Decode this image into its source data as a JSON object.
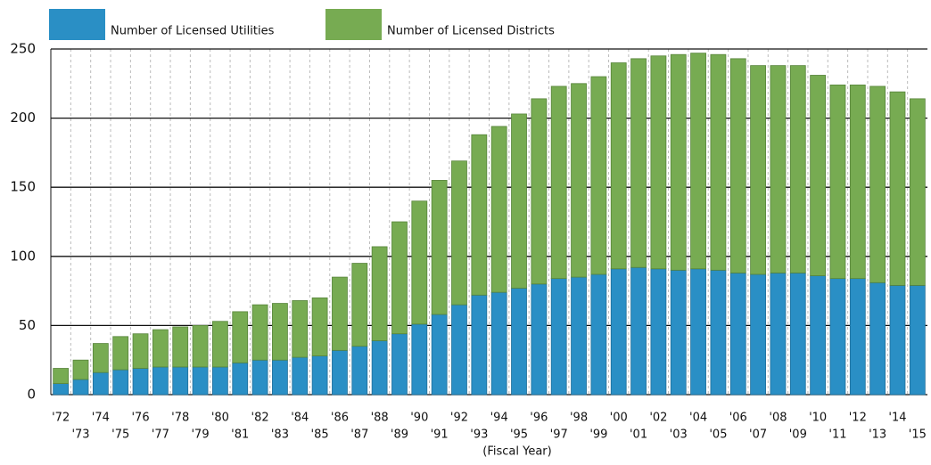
{
  "chart_data": {
    "type": "bar",
    "stacked": true,
    "x_label": "(Fiscal Year)",
    "categories": [
      "'72",
      "'73",
      "'74",
      "'75",
      "'76",
      "'77",
      "'78",
      "'79",
      "'80",
      "'81",
      "'82",
      "'83",
      "'84",
      "'85",
      "'86",
      "'87",
      "'88",
      "'89",
      "'90",
      "'91",
      "'92",
      "'93",
      "'94",
      "'95",
      "'96",
      "'97",
      "'98",
      "'99",
      "'00",
      "'01",
      "'02",
      "'03",
      "'04",
      "'05",
      "'06",
      "'07",
      "'08",
      "'09",
      "'10",
      "'11",
      "'12",
      "'13",
      "'14",
      "'15"
    ],
    "series": [
      {
        "name": "Number of Licensed Utilities",
        "color": "#2a8fc5",
        "values": [
          8,
          11,
          16,
          18,
          19,
          20,
          20,
          20,
          20,
          23,
          25,
          25,
          27,
          28,
          32,
          35,
          39,
          44,
          51,
          58,
          65,
          72,
          74,
          77,
          80,
          84,
          85,
          87,
          91,
          92,
          91,
          90,
          91,
          90,
          88,
          87,
          88,
          88,
          86,
          84,
          84,
          81,
          79,
          79
        ]
      },
      {
        "name": "Number of Licensed Districts",
        "color": "#77ab52",
        "values": [
          11,
          14,
          21,
          24,
          25,
          27,
          29,
          30,
          33,
          37,
          40,
          41,
          41,
          42,
          53,
          60,
          68,
          81,
          89,
          97,
          104,
          116,
          120,
          126,
          134,
          139,
          140,
          143,
          149,
          151,
          154,
          156,
          156,
          156,
          155,
          151,
          150,
          150,
          145,
          140,
          140,
          142,
          140,
          135
        ]
      }
    ],
    "ylim": [
      0,
      250
    ],
    "yticks": [
      0,
      50,
      100,
      150,
      200,
      250
    ],
    "grid": true,
    "legend": "top-left"
  }
}
